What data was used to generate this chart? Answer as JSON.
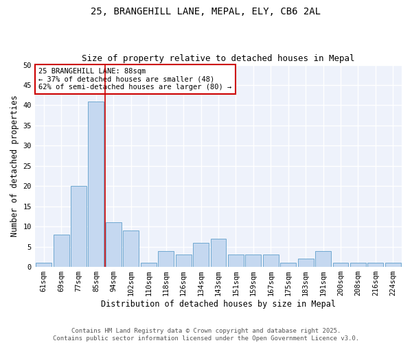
{
  "title1": "25, BRANGEHILL LANE, MEPAL, ELY, CB6 2AL",
  "title2": "Size of property relative to detached houses in Mepal",
  "xlabel": "Distribution of detached houses by size in Mepal",
  "ylabel": "Number of detached properties",
  "categories": [
    "61sqm",
    "69sqm",
    "77sqm",
    "85sqm",
    "94sqm",
    "102sqm",
    "110sqm",
    "118sqm",
    "126sqm",
    "134sqm",
    "143sqm",
    "151sqm",
    "159sqm",
    "167sqm",
    "175sqm",
    "183sqm",
    "191sqm",
    "200sqm",
    "208sqm",
    "216sqm",
    "224sqm"
  ],
  "values": [
    1,
    8,
    20,
    41,
    11,
    9,
    1,
    4,
    3,
    6,
    7,
    3,
    3,
    3,
    1,
    2,
    4,
    1,
    1,
    1,
    1
  ],
  "bar_color": "#c5d8f0",
  "bar_edge_color": "#6fa8d0",
  "vline_x_idx": 3.5,
  "vline_color": "#cc0000",
  "annotation_text": "25 BRANGEHILL LANE: 88sqm\n← 37% of detached houses are smaller (48)\n62% of semi-detached houses are larger (80) →",
  "annotation_box_color": "white",
  "annotation_box_edge": "#cc0000",
  "ylim": [
    0,
    50
  ],
  "yticks": [
    0,
    5,
    10,
    15,
    20,
    25,
    30,
    35,
    40,
    45,
    50
  ],
  "footer_text": "Contains HM Land Registry data © Crown copyright and database right 2025.\nContains public sector information licensed under the Open Government Licence v3.0.",
  "bg_color": "#ffffff",
  "plot_bg_color": "#eef2fb",
  "grid_color": "#ffffff",
  "title_fontsize": 10,
  "subtitle_fontsize": 9,
  "axis_label_fontsize": 8.5,
  "tick_fontsize": 7.5,
  "footer_fontsize": 6.5,
  "annot_fontsize": 7.5
}
